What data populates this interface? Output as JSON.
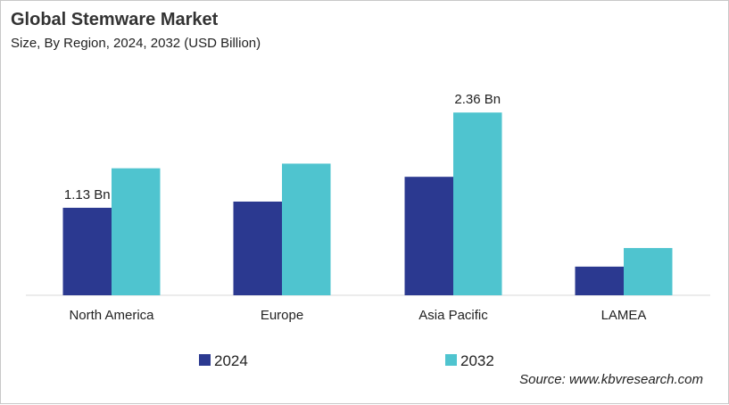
{
  "chart_data": {
    "type": "bar",
    "title": "Global Stemware Market",
    "subtitle": "Size, By Region, 2024, 2032 (USD Billion)",
    "categories": [
      "North America",
      "Europe",
      "Asia Pacific",
      "LAMEA"
    ],
    "series": [
      {
        "name": "2024",
        "color": "#2B3990",
        "values": [
          1.13,
          1.21,
          1.53,
          0.37
        ]
      },
      {
        "name": "2032",
        "color": "#4FC4CF",
        "values": [
          1.64,
          1.7,
          2.36,
          0.61
        ]
      }
    ],
    "data_labels": [
      {
        "series": 0,
        "category": 0,
        "text": "1.13 Bn"
      },
      {
        "series": 1,
        "category": 2,
        "text": "2.36 Bn"
      }
    ],
    "ylim": [
      0,
      3.0
    ],
    "grid": false,
    "legend_position": "bottom",
    "source": "Source: www.kbvresearch.com"
  }
}
